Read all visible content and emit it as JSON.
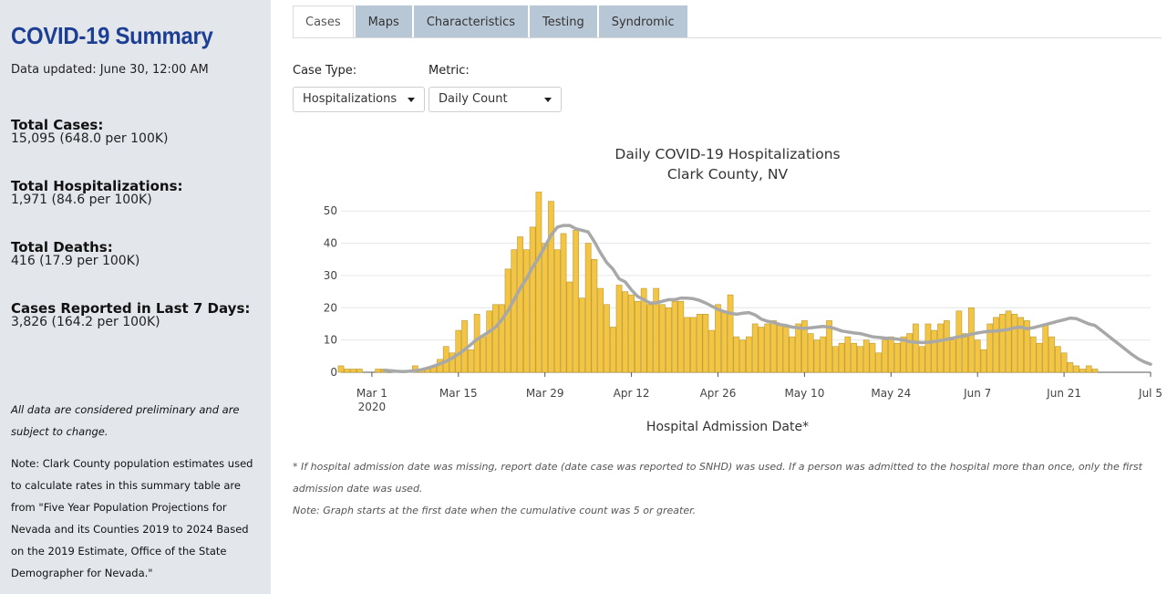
{
  "sidebar": {
    "title": "COVID-19 Summary",
    "updated": "Data updated: June 30, 12:00 AM",
    "stats": [
      {
        "label": "Total Cases:",
        "value": "15,095 (648.0 per 100K)"
      },
      {
        "label": "Total Hospitalizations:",
        "value": "1,971 (84.6 per 100K)"
      },
      {
        "label": "Total Deaths:",
        "value": "416 (17.9 per 100K)"
      },
      {
        "label": "Cases Reported in Last 7 Days:",
        "value": "3,826 (164.2 per 100K)"
      }
    ],
    "note_preliminary": "All data are considered preliminary and are subject to change.",
    "note_population": "Note: Clark County population estimates used to calculate rates in this summary table are from \"Five Year Population Projections for Nevada and its Counties 2019 to 2024 Based on the 2019 Estimate, Office of the State Demographer for Nevada.\""
  },
  "tabs": [
    "Cases",
    "Maps",
    "Characteristics",
    "Testing",
    "Syndromic"
  ],
  "active_tab": "Cases",
  "controls": {
    "case_type_label": "Case Type:",
    "case_type_value": "Hospitalizations",
    "metric_label": "Metric:",
    "metric_value": "Daily Count"
  },
  "footnotes": {
    "admission": "* If hospital admission date was missing, report date (date case was reported to SNHD) was used. If a person was admitted to the hospital more than once, only the first admission date was used.",
    "start": "Note: Graph starts at the first date when the cumulative count was 5 or greater."
  },
  "colors": {
    "bar": "#f4c542",
    "bar_stroke": "#b89a35",
    "trend": "#a8a8a8",
    "title_blue": "#1c3f94",
    "sidebar_bg": "#e3e6eb",
    "tab_bg": "#b8c7d6"
  },
  "chart_data": {
    "type": "bar",
    "title": [
      "Daily COVID-19 Hospitalizations",
      "Clark County, NV"
    ],
    "xlabel": "Hospital Admission Date*",
    "ylabel": "",
    "ylim": [
      0,
      56
    ],
    "yticks": [
      0,
      10,
      20,
      30,
      40,
      50
    ],
    "x_start": "2020-02-25",
    "x_end": "2020-07-05",
    "xticks": [
      {
        "date": "2020-03-01",
        "label": "Mar 1",
        "sublabel": "2020"
      },
      {
        "date": "2020-03-15",
        "label": "Mar 15"
      },
      {
        "date": "2020-03-29",
        "label": "Mar 29"
      },
      {
        "date": "2020-04-12",
        "label": "Apr 12"
      },
      {
        "date": "2020-04-26",
        "label": "Apr 26"
      },
      {
        "date": "2020-05-10",
        "label": "May 10"
      },
      {
        "date": "2020-05-24",
        "label": "May 24"
      },
      {
        "date": "2020-06-07",
        "label": "Jun 7"
      },
      {
        "date": "2020-06-21",
        "label": "Jun 21"
      },
      {
        "date": "2020-07-05",
        "label": "Jul 5"
      }
    ],
    "series": [
      {
        "kind": "bar",
        "first_date": "2020-02-25",
        "values": [
          2,
          1,
          1,
          1,
          0,
          0,
          1,
          1,
          0,
          0,
          0,
          0,
          2,
          1,
          1,
          2,
          4,
          8,
          6,
          13,
          16,
          7,
          18,
          11,
          19,
          21,
          21,
          32,
          38,
          42,
          38,
          45,
          56,
          40,
          53,
          38,
          43,
          28,
          44,
          23,
          40,
          35,
          26,
          21,
          14,
          27,
          25,
          24,
          22,
          26,
          21,
          26,
          21,
          20,
          22,
          22,
          17,
          17,
          18,
          18,
          13,
          21,
          19,
          24,
          11,
          10,
          11,
          15,
          14,
          15,
          16,
          15,
          14,
          11,
          15,
          16,
          12,
          10,
          11,
          16,
          8,
          9,
          11,
          9,
          8,
          10,
          9,
          6,
          10,
          11,
          9,
          11,
          12,
          15,
          8,
          15,
          13,
          15,
          16,
          10,
          19,
          12,
          20,
          10,
          7,
          15,
          17,
          18,
          19,
          18,
          17,
          16,
          11,
          9,
          15,
          11,
          8,
          6,
          3,
          2,
          1,
          2,
          1
        ]
      },
      {
        "kind": "line",
        "name": "",
        "first_date": "2020-03-03",
        "values": [
          0.6,
          0.5,
          0.3,
          0.2,
          0.3,
          0.5,
          0.8,
          1.3,
          1.9,
          2.6,
          3.4,
          4.4,
          5.6,
          7.0,
          8.6,
          10.2,
          11.4,
          12.6,
          14.0,
          16.2,
          19.0,
          22.5,
          26.0,
          29.0,
          32.5,
          35.5,
          39.0,
          42.5,
          45.0,
          45.5,
          45.5,
          44.5,
          44.0,
          43.5,
          40.5,
          37.0,
          34.0,
          32.0,
          29.0,
          28.0,
          25.5,
          23.5,
          22.5,
          21.5,
          21.5,
          22.0,
          22.5,
          22.5,
          23.0,
          23.0,
          22.8,
          22.3,
          21.5,
          20.5,
          19.5,
          18.8,
          18.3,
          18.0,
          18.3,
          18.5,
          17.8,
          16.5,
          15.8,
          15.5,
          14.8,
          14.5,
          14.0,
          13.8,
          13.6,
          13.8,
          14.0,
          14.2,
          14.0,
          13.5,
          12.8,
          12.5,
          12.2,
          12.0,
          11.5,
          11.0,
          10.8,
          10.6,
          10.5,
          10.3,
          10.0,
          9.5,
          9.3,
          9.2,
          9.3,
          9.5,
          9.8,
          10.2,
          10.6,
          11.0,
          11.3,
          11.8,
          12.2,
          12.5,
          12.7,
          12.8,
          13.0,
          13.3,
          13.8,
          14.0,
          13.5,
          13.8,
          14.3,
          14.8,
          15.3,
          15.8,
          16.3,
          16.8,
          16.6,
          15.8,
          15.0,
          14.5,
          13.0,
          11.5,
          10.0,
          8.5,
          7.0,
          5.5,
          4.2,
          3.2,
          2.5
        ]
      }
    ]
  }
}
